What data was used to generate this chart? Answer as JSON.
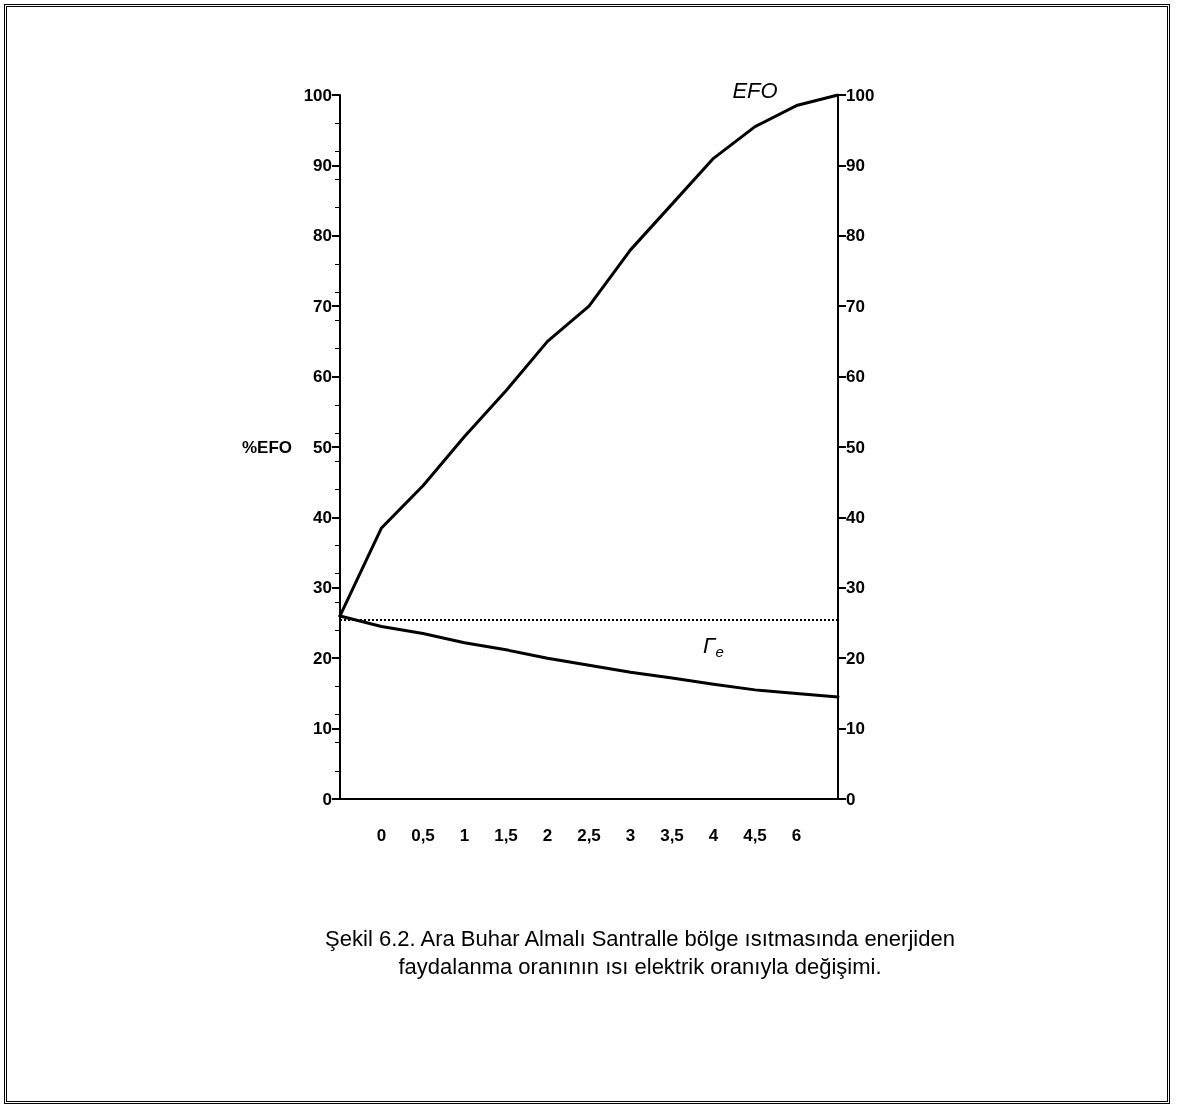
{
  "chart_data": {
    "type": "line",
    "title": "Şekil 6.2. Ara Buhar Almalı Santralle bölge ısıtmasında enerjiden faydalanma oranının ısı elektrik oranıyla değişimi.",
    "ylabel": "%EFO",
    "categories": [
      null,
      "0",
      "0,5",
      "1",
      "1,5",
      "2",
      "2,5",
      "3",
      "3,5",
      "4",
      "4,5",
      "6",
      null
    ],
    "series": [
      {
        "name": "EFO",
        "color": "#000000",
        "values": [
          26,
          38.5,
          44.5,
          51.5,
          58,
          65,
          70,
          78,
          84.5,
          91,
          95.5,
          98.5,
          100
        ]
      },
      {
        "name": "Γ$_{e}$",
        "color": "#000000",
        "values": [
          26,
          24.5,
          23.5,
          22.2,
          21.2,
          20,
          19,
          18,
          17.2,
          16.3,
          15.5,
          15,
          14.5
        ]
      }
    ],
    "ylim": [
      0,
      100
    ],
    "yticks": [
      0,
      10,
      20,
      30,
      40,
      50,
      60,
      70,
      80,
      90,
      100
    ],
    "y2lim": [
      0,
      100
    ],
    "y2ticks": [
      0,
      10,
      20,
      30,
      40,
      50,
      60,
      70,
      80,
      90,
      100
    ],
    "ref_lines": [
      {
        "axis": "y",
        "value": 25.5,
        "line_style": "dotted",
        "color": "#000000"
      }
    ],
    "grid": false,
    "legend": false,
    "marker": "none",
    "line_style": "solid"
  }
}
